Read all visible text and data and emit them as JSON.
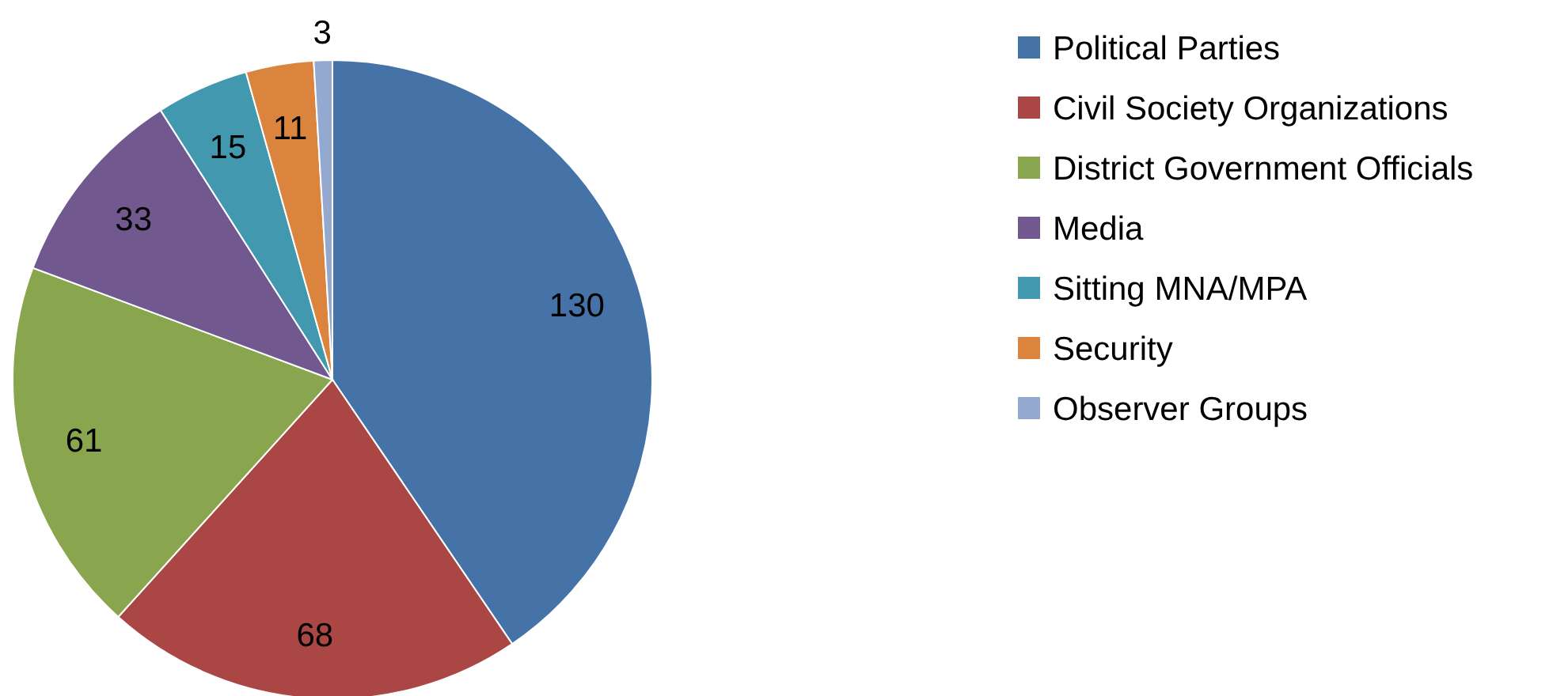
{
  "chart_data": {
    "type": "pie",
    "categories": [
      "Political Parties",
      "Civil Society Organizations",
      "District Government Officials",
      "Media",
      "Sitting MNA/MPA",
      "Security",
      "Observer Groups"
    ],
    "values": [
      130,
      68,
      61,
      33,
      15,
      11,
      3
    ],
    "colors": [
      "#4572a7",
      "#aa4643",
      "#89a54e",
      "#71588f",
      "#4198af",
      "#db843d",
      "#93a9cf"
    ],
    "data_labels": true,
    "legend": "right"
  }
}
